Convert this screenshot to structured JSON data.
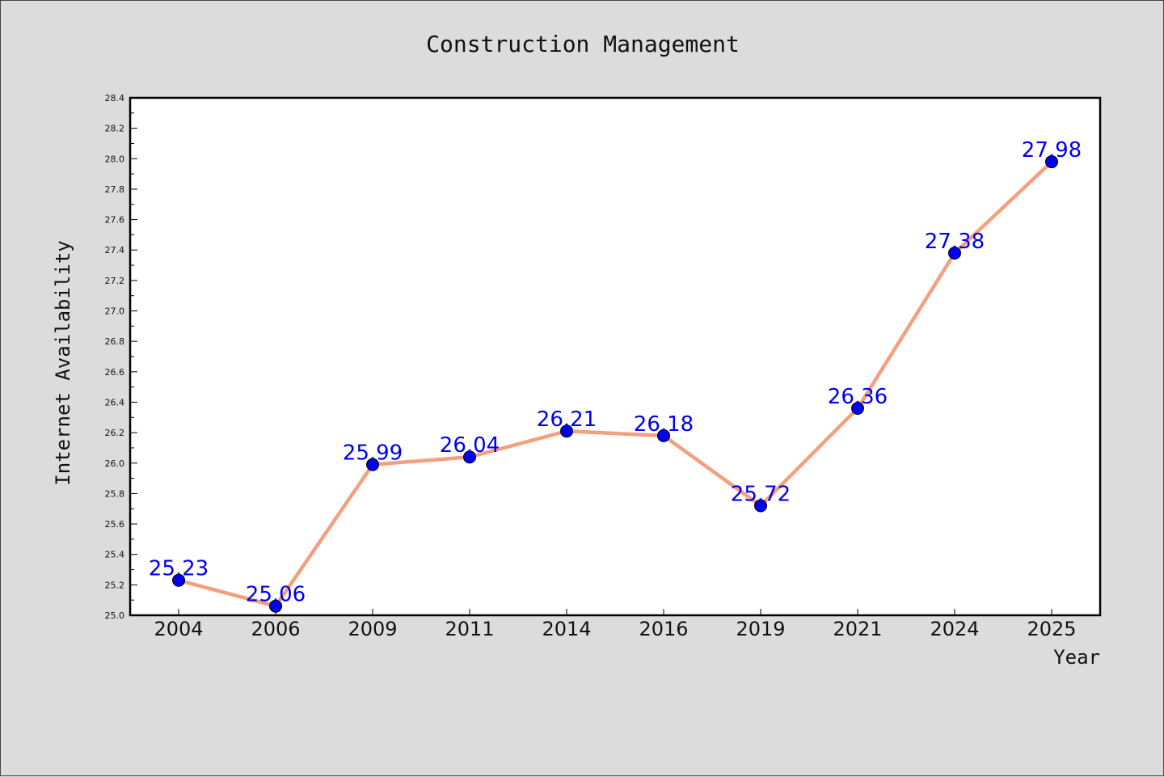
{
  "chart_data": {
    "type": "line",
    "title": "Construction Management",
    "xlabel": "Year",
    "ylabel": "Internet Availability",
    "categories": [
      "2004",
      "2006",
      "2009",
      "2011",
      "2014",
      "2016",
      "2019",
      "2021",
      "2024",
      "2025"
    ],
    "series": [
      {
        "values": [
          25.23,
          25.06,
          25.99,
          26.04,
          26.21,
          26.18,
          25.72,
          26.36,
          27.38,
          27.98
        ]
      }
    ],
    "data_labels": [
      "25.23",
      "25.06",
      "25.99",
      "26.04",
      "26.21",
      "26.18",
      "25.72",
      "26.36",
      "27.38",
      "27.98"
    ],
    "ylim": [
      25.0,
      28.4
    ],
    "y_ticks": [
      "25.0",
      "25.2",
      "25.4",
      "25.6",
      "25.8",
      "26.0",
      "26.2",
      "26.4",
      "26.6",
      "26.8",
      "27.0",
      "27.2",
      "27.4",
      "27.6",
      "27.8",
      "28.0",
      "28.2",
      "28.4"
    ],
    "grid": false,
    "legend": "none",
    "colors": {
      "line": "#f4a07f",
      "marker": "#0000ee",
      "data_label": "#0000ee",
      "background": "#dcdcdc",
      "plot_background": "#ffffff"
    }
  }
}
